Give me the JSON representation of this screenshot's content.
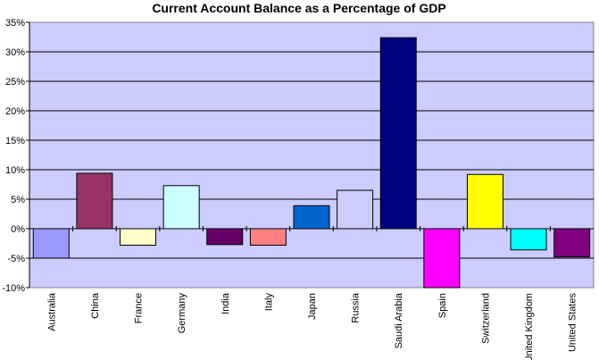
{
  "chart_data": {
    "type": "bar",
    "title": "Current Account Balance as a Percentage of GDP",
    "xlabel": "",
    "ylabel": "",
    "ylim": [
      -10,
      35
    ],
    "y_ticks": [
      {
        "value": 35,
        "label": "35%"
      },
      {
        "value": 30,
        "label": "30%"
      },
      {
        "value": 25,
        "label": "25%"
      },
      {
        "value": 20,
        "label": "20%"
      },
      {
        "value": 15,
        "label": "15%"
      },
      {
        "value": 10,
        "label": "10%"
      },
      {
        "value": 5,
        "label": "5%"
      },
      {
        "value": 0,
        "label": "0%"
      },
      {
        "value": -5,
        "label": "-5%"
      },
      {
        "value": -10,
        "label": "-10%"
      }
    ],
    "grid": true,
    "legend": "none",
    "plot_background": "#ccccff",
    "bars": [
      {
        "category": "Australia",
        "value": -5.0,
        "color": "#9999ff"
      },
      {
        "category": "China",
        "value": 9.4,
        "color": "#993366"
      },
      {
        "category": "France",
        "value": -2.8,
        "color": "#ffffcc"
      },
      {
        "category": "Germany",
        "value": 7.3,
        "color": "#ccffff"
      },
      {
        "category": "India",
        "value": -2.7,
        "color": "#660066"
      },
      {
        "category": "Italy",
        "value": -2.8,
        "color": "#ff8080"
      },
      {
        "category": "Japan",
        "value": 3.9,
        "color": "#0066cc"
      },
      {
        "category": "Russia",
        "value": 6.5,
        "color": "#ccccff"
      },
      {
        "category": "Saudi Arabia",
        "value": 32.4,
        "color": "#000080"
      },
      {
        "category": "Spain",
        "value": -10.0,
        "color": "#ff00ff"
      },
      {
        "category": "Switzerland",
        "value": 9.2,
        "color": "#ffff00"
      },
      {
        "category": "United Kingdom",
        "value": -3.6,
        "color": "#00ffff"
      },
      {
        "category": "United States",
        "value": -4.8,
        "color": "#800080"
      }
    ]
  }
}
